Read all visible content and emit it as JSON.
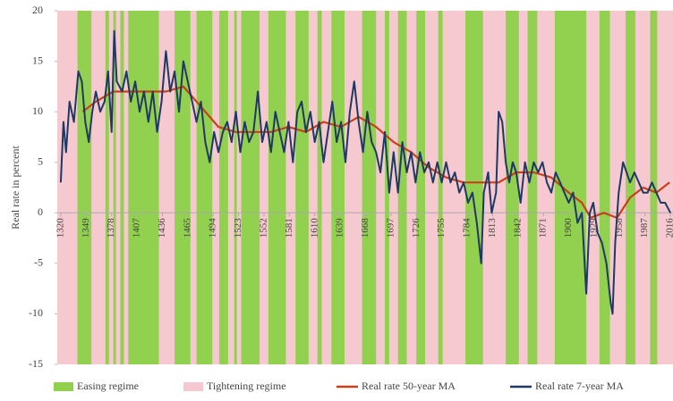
{
  "chart_data": {
    "type": "line",
    "y_label": "Real rate in percent",
    "xlim": [
      1316,
      2019
    ],
    "ylim": [
      -15,
      20
    ],
    "yticks": [
      -15,
      -10,
      -5,
      0,
      5,
      10,
      15,
      20
    ],
    "xticks": [
      1320,
      1349,
      1378,
      1407,
      1436,
      1465,
      1494,
      1523,
      1552,
      1581,
      1610,
      1639,
      1668,
      1697,
      1726,
      1755,
      1784,
      1813,
      1842,
      1871,
      1900,
      1929,
      1958,
      1987,
      2016
    ],
    "regimes": [
      {
        "name": "Easing regime",
        "color": "#92d050",
        "spans": [
          [
            1339,
            1355
          ],
          [
            1371,
            1375
          ],
          [
            1380,
            1383
          ],
          [
            1388,
            1392
          ],
          [
            1397,
            1432
          ],
          [
            1450,
            1468
          ],
          [
            1475,
            1493
          ],
          [
            1501,
            1511
          ],
          [
            1518,
            1521
          ],
          [
            1526,
            1547
          ],
          [
            1557,
            1577
          ],
          [
            1588,
            1603
          ],
          [
            1613,
            1618
          ],
          [
            1629,
            1644
          ],
          [
            1664,
            1680
          ],
          [
            1690,
            1695
          ],
          [
            1705,
            1715
          ],
          [
            1726,
            1736
          ],
          [
            1751,
            1756
          ],
          [
            1782,
            1802
          ],
          [
            1828,
            1843
          ],
          [
            1853,
            1864
          ],
          [
            1884,
            1920
          ],
          [
            1935,
            1947
          ],
          [
            1965,
            1976
          ],
          [
            1993,
            2001
          ]
        ]
      },
      {
        "name": "Tightening regime",
        "color": "#f6c9d0"
      }
    ],
    "series": [
      {
        "name": "Real rate 50-year MA",
        "color": "#c8401a",
        "x": [
          1345,
          1360,
          1380,
          1400,
          1420,
          1440,
          1460,
          1475,
          1490,
          1500,
          1520,
          1540,
          1560,
          1580,
          1600,
          1620,
          1640,
          1660,
          1680,
          1700,
          1720,
          1740,
          1760,
          1780,
          1800,
          1820,
          1840,
          1860,
          1880,
          1900,
          1915,
          1925,
          1940,
          1955,
          1970,
          1985,
          2000,
          2015
        ],
        "values": [
          10,
          11,
          12,
          12,
          12,
          12,
          12.5,
          11,
          9.5,
          8.5,
          8,
          8,
          8,
          8.5,
          8,
          9,
          8.5,
          9.5,
          8.5,
          7,
          6,
          4.5,
          3.5,
          3,
          3,
          3,
          4,
          4,
          3.5,
          2,
          1,
          -0.5,
          0,
          -0.5,
          1.5,
          2.5,
          2,
          3
        ]
      },
      {
        "name": "Real rate 7-year MA",
        "color": "#1f3864",
        "x": [
          1320,
          1323,
          1326,
          1330,
          1335,
          1340,
          1344,
          1348,
          1352,
          1356,
          1360,
          1365,
          1370,
          1374,
          1378,
          1381,
          1384,
          1390,
          1395,
          1400,
          1405,
          1410,
          1415,
          1420,
          1425,
          1430,
          1435,
          1440,
          1445,
          1450,
          1455,
          1460,
          1465,
          1470,
          1475,
          1480,
          1485,
          1490,
          1495,
          1500,
          1505,
          1510,
          1515,
          1520,
          1525,
          1530,
          1535,
          1540,
          1545,
          1550,
          1555,
          1560,
          1565,
          1570,
          1575,
          1580,
          1585,
          1590,
          1595,
          1600,
          1605,
          1610,
          1615,
          1620,
          1625,
          1630,
          1635,
          1640,
          1645,
          1650,
          1655,
          1660,
          1665,
          1670,
          1675,
          1680,
          1685,
          1690,
          1695,
          1700,
          1705,
          1710,
          1715,
          1720,
          1725,
          1730,
          1735,
          1740,
          1745,
          1750,
          1755,
          1760,
          1765,
          1770,
          1775,
          1780,
          1785,
          1790,
          1795,
          1800,
          1803,
          1808,
          1812,
          1817,
          1820,
          1824,
          1828,
          1832,
          1836,
          1840,
          1845,
          1850,
          1855,
          1860,
          1865,
          1870,
          1875,
          1880,
          1885,
          1890,
          1895,
          1900,
          1905,
          1910,
          1915,
          1920,
          1924,
          1928,
          1933,
          1938,
          1943,
          1948,
          1950,
          1953,
          1957,
          1962,
          1966,
          1970,
          1975,
          1980,
          1985,
          1990,
          1995,
          2000,
          2005,
          2010,
          2016
        ],
        "values": [
          3,
          9,
          6,
          11,
          9,
          14,
          13,
          9,
          7,
          10,
          12,
          10,
          11,
          14,
          8,
          18,
          13,
          12,
          14,
          11,
          13,
          10,
          12,
          9,
          12,
          8,
          11,
          16,
          12,
          14,
          10,
          15,
          13,
          11,
          9,
          11,
          7,
          5,
          8,
          6,
          8,
          9,
          7,
          10,
          6,
          9,
          7,
          8,
          12,
          7,
          9,
          6,
          10,
          8,
          6,
          9,
          5,
          10,
          11,
          8,
          10,
          7,
          9,
          5,
          8,
          11,
          7,
          9,
          5,
          10,
          13,
          9,
          6,
          10,
          7,
          6,
          4,
          8,
          2,
          6,
          2,
          7,
          4,
          6,
          3,
          6,
          4,
          5,
          3,
          5,
          3,
          5,
          3,
          4,
          2,
          3,
          1,
          2,
          -1,
          -5,
          2,
          4,
          0,
          2,
          10,
          9,
          5,
          3,
          5,
          4,
          1,
          5,
          3,
          5,
          4,
          5,
          3,
          2,
          4,
          3,
          2,
          1,
          2,
          -1,
          0,
          -8,
          0,
          1,
          -2,
          -3,
          -5,
          -9,
          -10,
          -3,
          2,
          5,
          4,
          3,
          4,
          3,
          2,
          2,
          3,
          2,
          1,
          1,
          0
        ]
      }
    ]
  }
}
